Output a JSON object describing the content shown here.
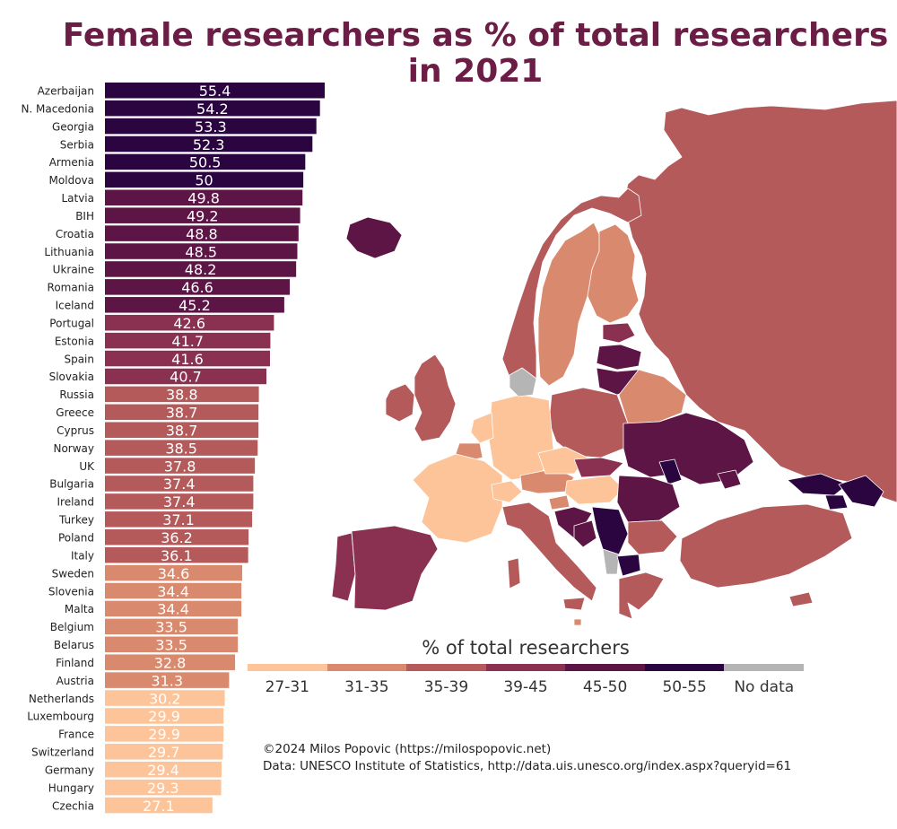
{
  "title_line1": "Female researchers as % of total researchers",
  "title_line2": "in 2021",
  "legend": {
    "title": "% of total researchers",
    "items": [
      {
        "label": "27-31",
        "color": "#fdc49a"
      },
      {
        "label": "31-35",
        "color": "#d98a6e"
      },
      {
        "label": "35-39",
        "color": "#b45a5b"
      },
      {
        "label": "39-45",
        "color": "#8a3050"
      },
      {
        "label": "45-50",
        "color": "#5c1545"
      },
      {
        "label": "50-55",
        "color": "#2a0540"
      },
      {
        "label": "No data",
        "color": "#b5b5b5"
      }
    ]
  },
  "credits": {
    "line1": "©2024 Milos Popovic (https://milospopovic.net)",
    "line2": "Data: UNESCO Institute of Statistics, http://data.uis.unesco.org/index.aspx?queryid=61"
  },
  "chart_data": {
    "type": "bar",
    "orientation": "horizontal",
    "categories": [
      "Azerbaijan",
      "N. Macedonia",
      "Georgia",
      "Serbia",
      "Armenia",
      "Moldova",
      "Latvia",
      "BIH",
      "Croatia",
      "Lithuania",
      "Ukraine",
      "Romania",
      "Iceland",
      "Portugal",
      "Estonia",
      "Spain",
      "Slovakia",
      "Russia",
      "Greece",
      "Cyprus",
      "Norway",
      "UK",
      "Bulgaria",
      "Ireland",
      "Turkey",
      "Poland",
      "Italy",
      "Sweden",
      "Slovenia",
      "Malta",
      "Belgium",
      "Belarus",
      "Finland",
      "Austria",
      "Netherlands",
      "Luxembourg",
      "France",
      "Switzerland",
      "Germany",
      "Hungary",
      "Czechia"
    ],
    "values": [
      55.4,
      54.2,
      53.3,
      52.3,
      50.5,
      50,
      49.8,
      49.2,
      48.8,
      48.5,
      48.2,
      46.6,
      45.2,
      42.6,
      41.7,
      41.6,
      40.7,
      38.8,
      38.7,
      38.7,
      38.5,
      37.8,
      37.4,
      37.4,
      37.1,
      36.2,
      36.1,
      34.6,
      34.4,
      34.4,
      33.5,
      33.5,
      32.8,
      31.3,
      30.2,
      29.9,
      29.9,
      29.7,
      29.4,
      29.3,
      27.1
    ],
    "value_labels": [
      "55.4",
      "54.2",
      "53.3",
      "52.3",
      "50.5",
      "50",
      "49.8",
      "49.2",
      "48.8",
      "48.5",
      "48.2",
      "46.6",
      "45.2",
      "42.6",
      "41.7",
      "41.6",
      "40.7",
      "38.8",
      "38.7",
      "38.7",
      "38.5",
      "37.8",
      "37.4",
      "37.4",
      "37.1",
      "36.2",
      "36.1",
      "34.6",
      "34.4",
      "34.4",
      "33.5",
      "33.5",
      "32.8",
      "31.3",
      "30.2",
      "29.9",
      "29.9",
      "29.7",
      "29.4",
      "29.3",
      "27.1"
    ],
    "xlim": [
      0,
      55.4
    ]
  }
}
